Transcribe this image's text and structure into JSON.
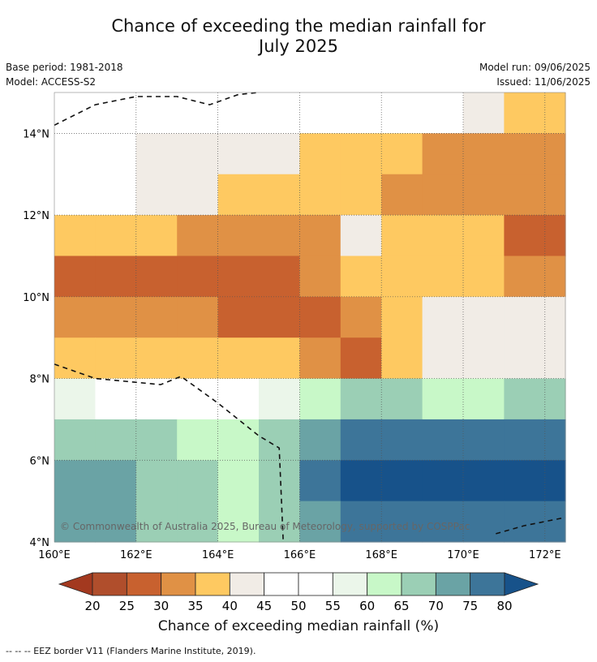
{
  "header": {
    "title_line1": "Chance of exceeding the median rainfall for",
    "title_line2": "July 2025",
    "base_period": "Base period: 1981-2018",
    "model": "Model: ACCESS-S2",
    "model_run": "Model run: 09/06/2025",
    "issued": "Issued: 11/06/2025"
  },
  "map": {
    "lon_range": [
      160,
      172.5
    ],
    "lat_range": [
      4,
      15
    ],
    "lon_ticks": [
      "160°E",
      "162°E",
      "164°E",
      "166°E",
      "168°E",
      "170°E",
      "172°E"
    ],
    "lat_ticks": [
      "4°N",
      "6°N",
      "8°N",
      "10°N",
      "12°N",
      "14°N"
    ],
    "copyright": "© Commonwealth of Australia 2025, Bureau of Meteorology, supported by COSPPac",
    "grid": true
  },
  "colorbar": {
    "ticks": [
      "20",
      "25",
      "30",
      "35",
      "40",
      "45",
      "50",
      "55",
      "60",
      "65",
      "70",
      "75",
      "80"
    ],
    "colors": [
      "#a3391f",
      "#b04e2c",
      "#c8612f",
      "#e09145",
      "#fec961",
      "#f1ece6",
      "#ffffff",
      "#ffffff",
      "#ebf6ea",
      "#c8f8c8",
      "#9bcfb5",
      "#6aa3a5",
      "#3d7599",
      "#17528a"
    ],
    "label": "Chance of exceeding median rainfall (%)"
  },
  "footnote": "--  --  -- EEZ border V11 (Flanders Marine Institute, 2019).",
  "chart_data": {
    "type": "heatmap",
    "title": "Chance of exceeding the median rainfall for July 2025",
    "xlabel": "",
    "ylabel": "",
    "xlim": [
      160,
      172.5
    ],
    "ylim": [
      4,
      15
    ],
    "units": "%",
    "rows_lat": [
      14.5,
      13.5,
      12.5,
      11.5,
      10.5,
      9.5,
      8.5,
      7.5,
      6.5,
      5.5,
      4.5
    ],
    "cols_lon": [
      160.5,
      161.5,
      162.5,
      163.5,
      164.5,
      165.5,
      166.5,
      167.5,
      168.5,
      169.5,
      170.5,
      171.5,
      172.2
    ],
    "values": [
      [
        47,
        47,
        47,
        47,
        47,
        47,
        47,
        47,
        47,
        47,
        42,
        37,
        37
      ],
      [
        47,
        47,
        42,
        42,
        42,
        42,
        37,
        37,
        37,
        32,
        32,
        32,
        32
      ],
      [
        47,
        47,
        42,
        42,
        37,
        37,
        37,
        37,
        32,
        32,
        32,
        32,
        32
      ],
      [
        37,
        37,
        37,
        32,
        32,
        32,
        32,
        42,
        37,
        37,
        37,
        27,
        27
      ],
      [
        27,
        27,
        27,
        27,
        27,
        27,
        32,
        37,
        37,
        37,
        37,
        32,
        32
      ],
      [
        32,
        32,
        32,
        32,
        27,
        27,
        27,
        32,
        37,
        42,
        42,
        42,
        42
      ],
      [
        37,
        37,
        37,
        37,
        37,
        37,
        32,
        27,
        37,
        42,
        42,
        42,
        42
      ],
      [
        57,
        52,
        52,
        52,
        52,
        57,
        62,
        67,
        67,
        62,
        62,
        67,
        67
      ],
      [
        67,
        67,
        67,
        62,
        62,
        67,
        72,
        77,
        77,
        77,
        77,
        77,
        77
      ],
      [
        72,
        72,
        67,
        67,
        62,
        67,
        77,
        82,
        82,
        82,
        82,
        82,
        82
      ],
      [
        72,
        72,
        67,
        67,
        62,
        67,
        72,
        77,
        77,
        77,
        77,
        77,
        77
      ]
    ]
  }
}
